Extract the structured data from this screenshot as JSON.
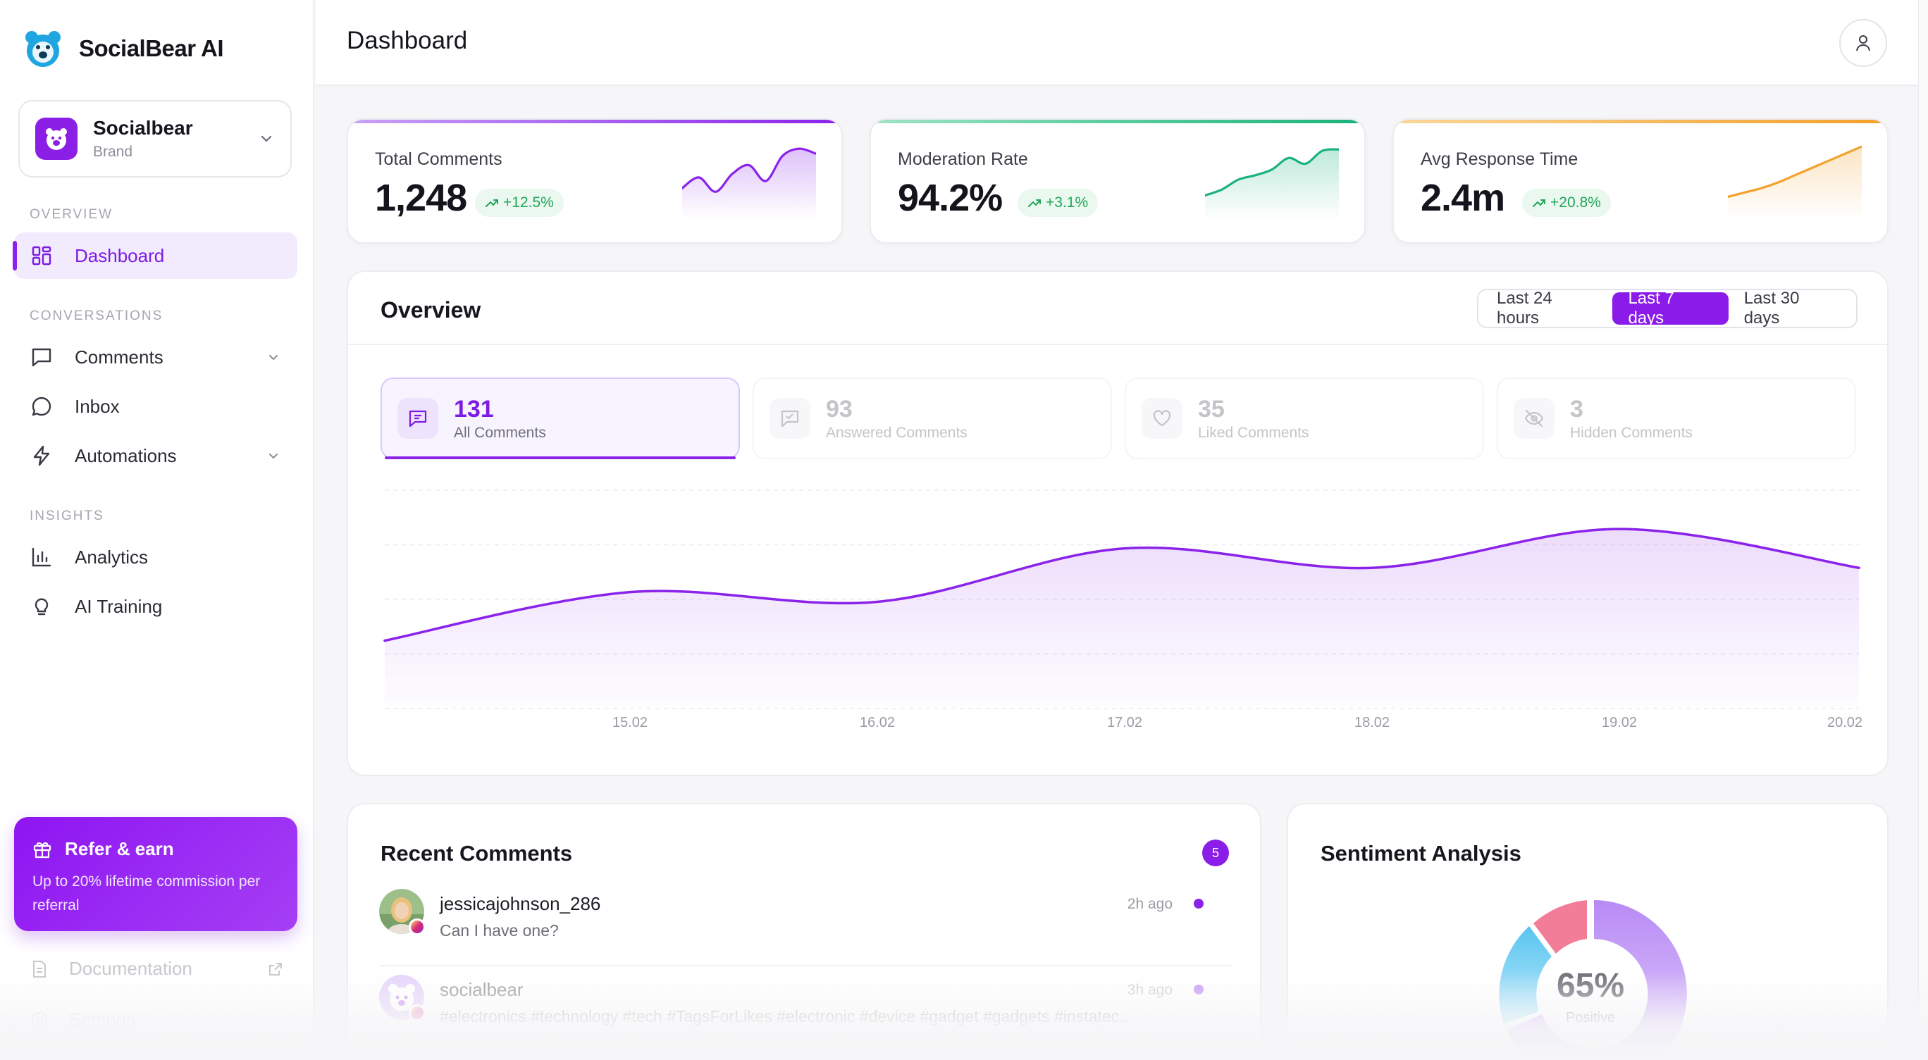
{
  "app": {
    "name": "SocialBear AI"
  },
  "account": {
    "name": "Socialbear",
    "type": "Brand"
  },
  "sidebar": {
    "sections": [
      "OVERVIEW",
      "CONVERSATIONS",
      "INSIGHTS"
    ],
    "items": [
      {
        "label": "Dashboard",
        "icon": "grid-icon",
        "active": true
      },
      {
        "label": "Comments",
        "icon": "comment-icon",
        "expandable": true
      },
      {
        "label": "Inbox",
        "icon": "chat-bubble-icon"
      },
      {
        "label": "Automations",
        "icon": "lightning-icon",
        "expandable": true
      },
      {
        "label": "Analytics",
        "icon": "bar-chart-icon"
      },
      {
        "label": "AI Training",
        "icon": "lightbulb-icon"
      }
    ],
    "refer": {
      "title": "Refer & earn",
      "subtitle": "Up to 20% lifetime commission per referral"
    },
    "footer": [
      {
        "label": "Documentation",
        "icon": "document-icon"
      },
      {
        "label": "Settings",
        "icon": "gear-icon"
      }
    ]
  },
  "header": {
    "title": "Dashboard"
  },
  "stats": [
    {
      "label": "Total Comments",
      "value": "1,248",
      "delta": "+12.5%",
      "color": "#8a22ea",
      "trend": [
        40,
        55,
        35,
        60,
        72,
        50,
        85,
        95,
        88
      ]
    },
    {
      "label": "Moderation Rate",
      "value": "94.2%",
      "delta": "+3.1%",
      "color": "#19b27a",
      "trend": [
        30,
        38,
        52,
        58,
        66,
        82,
        74,
        92,
        94
      ]
    },
    {
      "label": "Avg Response Time",
      "value": "2.4m",
      "delta": "+20.8%",
      "color": "#f3a12b",
      "trend": [
        28,
        34,
        40,
        48,
        58,
        68,
        78,
        88,
        98
      ]
    }
  ],
  "overview": {
    "title": "Overview",
    "ranges": [
      "Last 24 hours",
      "Last 7 days",
      "Last 30 days"
    ],
    "selected_range": "Last 7 days",
    "kpis": [
      {
        "value": "131",
        "label": "All Comments",
        "icon": "message-square-icon",
        "active": true
      },
      {
        "value": "93",
        "label": "Answered Comments",
        "icon": "reply-icon"
      },
      {
        "value": "35",
        "label": "Liked Comments",
        "icon": "heart-icon"
      },
      {
        "value": "3",
        "label": "Hidden Comments",
        "icon": "eye-off-icon"
      }
    ]
  },
  "chart_data": {
    "type": "area",
    "categories": [
      "15.02",
      "16.02",
      "17.02",
      "18.02",
      "19.02",
      "20.02"
    ],
    "series": [
      {
        "values": [
          24,
          22,
          33,
          29,
          37,
          29
        ]
      }
    ],
    "start_value": 14,
    "ylim": [
      0,
      45
    ],
    "grid": true,
    "color": "#8a22ea"
  },
  "recent": {
    "title": "Recent Comments",
    "count": "5",
    "comments": [
      {
        "user": "jessicajohnson_286",
        "text": "Can I have one?",
        "time": "2h ago",
        "platform": "instagram"
      },
      {
        "user": "socialbear",
        "text": "#electronics #technology #tech #TagsForLikes #electronic #device #gadget #gadgets #instatec...",
        "time": "3h ago",
        "platform": "instagram"
      }
    ]
  },
  "sentiment": {
    "title": "Sentiment Analysis",
    "value": "65%",
    "label": "Positive"
  }
}
